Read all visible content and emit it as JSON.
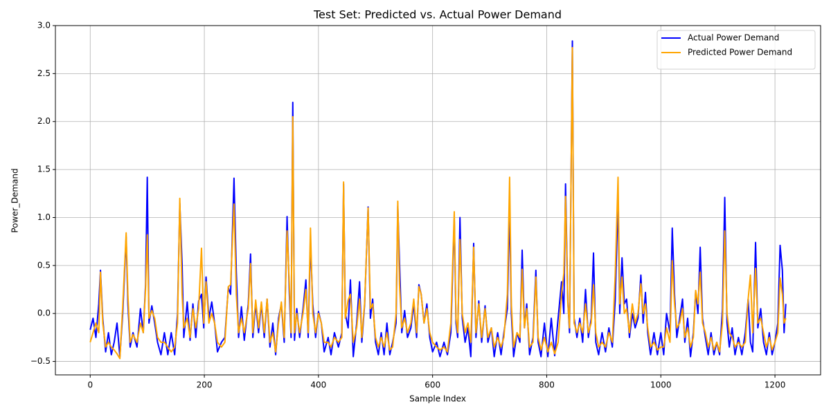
{
  "chart_data": {
    "type": "line",
    "title": "Test Set: Predicted vs. Actual Power Demand",
    "x_label": "Sample Index",
    "y_label": "Power_Demand",
    "xlim": [
      -61,
      1280
    ],
    "ylim": [
      -0.64,
      3.0
    ],
    "xticks": [
      0,
      200,
      400,
      600,
      800,
      1000,
      1200
    ],
    "yticks": [
      {
        "value": -0.5,
        "label": "−0.5"
      },
      {
        "value": 0,
        "label": "0.0"
      },
      0.5,
      {
        "value": 1,
        "label": "1.0"
      },
      1.5,
      {
        "value": 2,
        "label": "2.0"
      },
      2.5,
      {
        "value": 3,
        "label": "3.0"
      }
    ],
    "grid": true,
    "legend": "upper right",
    "x": [
      0,
      5,
      10,
      15,
      18,
      22,
      27,
      32,
      37,
      42,
      47,
      52,
      57,
      63,
      66,
      70,
      75,
      82,
      88,
      93,
      97,
      100,
      103,
      108,
      113,
      118,
      124,
      130,
      136,
      142,
      148,
      153,
      157,
      161,
      164,
      170,
      175,
      180,
      185,
      190,
      195,
      199,
      203,
      208,
      213,
      218,
      223,
      230,
      236,
      242,
      246,
      252,
      256,
      260,
      265,
      270,
      277,
      281,
      285,
      290,
      295,
      300,
      305,
      310,
      315,
      320,
      325,
      330,
      335,
      340,
      345,
      349,
      352,
      355,
      358,
      362,
      367,
      373,
      378,
      382,
      386,
      390,
      395,
      400,
      405,
      410,
      417,
      422,
      428,
      435,
      441,
      444,
      447,
      452,
      456,
      461,
      467,
      472,
      476,
      481,
      487,
      491,
      495,
      500,
      505,
      510,
      515,
      520,
      525,
      530,
      536,
      539,
      542,
      546,
      551,
      556,
      562,
      567,
      572,
      576,
      580,
      585,
      590,
      595,
      600,
      607,
      613,
      620,
      626,
      632,
      638,
      641,
      644,
      648,
      652,
      657,
      662,
      667,
      672,
      676,
      681,
      686,
      692,
      697,
      703,
      708,
      714,
      720,
      725,
      731,
      735,
      738,
      742,
      748,
      753,
      757,
      761,
      765,
      770,
      776,
      781,
      785,
      790,
      796,
      802,
      808,
      814,
      820,
      826,
      830,
      833,
      837,
      840,
      845,
      848,
      853,
      858,
      863,
      868,
      873,
      878,
      882,
      886,
      891,
      897,
      903,
      909,
      915,
      920,
      925,
      928,
      932,
      936,
      940,
      945,
      950,
      955,
      960,
      965,
      969,
      973,
      977,
      982,
      988,
      994,
      1000,
      1005,
      1010,
      1016,
      1020,
      1024,
      1028,
      1033,
      1038,
      1042,
      1047,
      1052,
      1057,
      1061,
      1065,
      1069,
      1073,
      1078,
      1083,
      1088,
      1093,
      1098,
      1103,
      1108,
      1112,
      1116,
      1120,
      1125,
      1130,
      1136,
      1142,
      1148,
      1153,
      1157,
      1161,
      1166,
      1170,
      1175,
      1180,
      1185,
      1190,
      1195,
      1200,
      1205,
      1209,
      1213,
      1216,
      1219
    ],
    "series": [
      {
        "name": "Actual Power Demand",
        "color": "#0000ff",
        "values": [
          -0.17,
          -0.05,
          -0.25,
          0.1,
          0.45,
          -0.05,
          -0.4,
          -0.2,
          -0.43,
          -0.3,
          -0.1,
          -0.45,
          0.0,
          0.8,
          0.1,
          -0.35,
          -0.2,
          -0.35,
          0.05,
          -0.2,
          0.3,
          1.42,
          -0.1,
          0.08,
          -0.1,
          -0.3,
          -0.43,
          -0.2,
          -0.43,
          -0.2,
          -0.43,
          0.0,
          1.15,
          0.52,
          -0.25,
          0.12,
          -0.28,
          0.1,
          -0.25,
          0.13,
          0.2,
          -0.15,
          0.38,
          -0.05,
          0.12,
          -0.1,
          -0.4,
          -0.3,
          -0.25,
          0.27,
          0.2,
          1.41,
          0.44,
          -0.25,
          0.07,
          -0.28,
          0.1,
          0.62,
          -0.25,
          0.1,
          -0.2,
          0.1,
          -0.25,
          0.15,
          -0.35,
          -0.1,
          -0.43,
          -0.05,
          0.1,
          -0.3,
          1.01,
          0.2,
          -0.25,
          2.2,
          -0.28,
          0.05,
          -0.25,
          0.05,
          0.35,
          -0.25,
          0.75,
          0.1,
          -0.25,
          0.02,
          -0.1,
          -0.4,
          -0.25,
          -0.43,
          -0.2,
          -0.35,
          -0.2,
          1.35,
          0.0,
          -0.15,
          0.35,
          -0.45,
          -0.1,
          0.33,
          -0.3,
          0.1,
          1.11,
          -0.05,
          0.15,
          -0.3,
          -0.43,
          -0.2,
          -0.43,
          -0.1,
          -0.43,
          -0.3,
          -0.1,
          1.12,
          0.54,
          -0.2,
          0.03,
          -0.25,
          -0.15,
          0.1,
          -0.25,
          0.3,
          0.2,
          -0.1,
          0.1,
          -0.25,
          -0.4,
          -0.3,
          -0.45,
          -0.3,
          -0.43,
          -0.2,
          0.99,
          -0.1,
          -0.25,
          1.0,
          -0.05,
          -0.3,
          -0.15,
          -0.45,
          0.73,
          -0.25,
          0.13,
          -0.3,
          0.08,
          -0.3,
          -0.15,
          -0.45,
          -0.2,
          -0.43,
          -0.2,
          0.05,
          1.1,
          0.0,
          -0.45,
          -0.2,
          -0.3,
          0.66,
          -0.15,
          0.1,
          -0.43,
          -0.25,
          0.45,
          -0.3,
          -0.45,
          -0.1,
          -0.45,
          -0.05,
          -0.44,
          -0.05,
          0.33,
          0.0,
          1.35,
          0.13,
          -0.2,
          2.84,
          -0.05,
          -0.25,
          -0.05,
          -0.3,
          0.25,
          -0.25,
          -0.05,
          0.63,
          -0.3,
          -0.43,
          -0.2,
          -0.4,
          -0.15,
          -0.35,
          0.13,
          1.19,
          0.0,
          0.58,
          0.1,
          0.15,
          -0.25,
          0.0,
          -0.15,
          -0.05,
          0.4,
          -0.1,
          0.22,
          -0.2,
          -0.43,
          -0.2,
          -0.43,
          -0.2,
          -0.43,
          0.0,
          -0.2,
          0.89,
          0.2,
          -0.25,
          -0.05,
          0.15,
          -0.3,
          -0.05,
          -0.45,
          -0.2,
          0.23,
          0.0,
          0.69,
          -0.05,
          -0.25,
          -0.43,
          -0.2,
          -0.43,
          -0.3,
          -0.43,
          0.05,
          1.21,
          -0.1,
          -0.35,
          -0.15,
          -0.43,
          -0.25,
          -0.43,
          -0.2,
          0.15,
          -0.3,
          -0.4,
          0.74,
          -0.15,
          0.05,
          -0.3,
          -0.43,
          -0.2,
          -0.43,
          -0.3,
          -0.1,
          0.71,
          0.45,
          -0.2,
          0.1
        ]
      },
      {
        "name": "Predicted Power Demand",
        "color": "#ffa500",
        "values": [
          -0.3,
          -0.2,
          -0.1,
          -0.2,
          0.43,
          -0.1,
          -0.35,
          -0.3,
          -0.35,
          -0.38,
          -0.42,
          -0.47,
          0.08,
          0.84,
          0.2,
          -0.3,
          -0.22,
          -0.3,
          -0.1,
          -0.2,
          0.25,
          0.82,
          -0.05,
          0.03,
          -0.05,
          -0.25,
          -0.3,
          -0.3,
          -0.35,
          -0.4,
          -0.35,
          -0.1,
          1.2,
          0.2,
          -0.15,
          -0.05,
          -0.25,
          0.05,
          -0.15,
          0.05,
          0.68,
          -0.1,
          0.33,
          -0.1,
          0.0,
          -0.1,
          -0.3,
          -0.35,
          -0.3,
          0.28,
          0.3,
          1.14,
          0.2,
          -0.2,
          -0.05,
          -0.2,
          0.05,
          0.52,
          -0.2,
          0.14,
          -0.15,
          0.12,
          -0.2,
          0.15,
          -0.3,
          -0.2,
          -0.4,
          -0.1,
          0.12,
          -0.25,
          0.86,
          0.3,
          -0.2,
          2.05,
          -0.2,
          0.0,
          -0.2,
          0.0,
          0.25,
          -0.2,
          0.89,
          0.0,
          -0.2,
          0.0,
          -0.1,
          -0.3,
          -0.3,
          -0.35,
          -0.25,
          -0.3,
          -0.25,
          1.37,
          -0.05,
          0.14,
          0.2,
          -0.3,
          -0.15,
          0.15,
          -0.25,
          0.12,
          1.1,
          0.05,
          0.1,
          -0.25,
          -0.35,
          -0.25,
          -0.35,
          -0.2,
          -0.38,
          -0.35,
          0.0,
          1.17,
          0.3,
          -0.15,
          -0.05,
          -0.2,
          -0.1,
          0.15,
          -0.2,
          0.28,
          0.2,
          -0.1,
          0.05,
          -0.2,
          -0.3,
          -0.35,
          -0.38,
          -0.35,
          -0.4,
          -0.1,
          1.06,
          -0.05,
          -0.2,
          0.77,
          0.0,
          -0.2,
          -0.1,
          -0.3,
          0.69,
          -0.2,
          0.1,
          -0.25,
          0.05,
          -0.25,
          -0.15,
          -0.35,
          -0.25,
          -0.35,
          -0.25,
          0.2,
          1.42,
          0.1,
          -0.35,
          -0.2,
          -0.25,
          0.46,
          -0.15,
          0.05,
          -0.35,
          -0.3,
          0.38,
          -0.25,
          -0.38,
          -0.25,
          -0.4,
          -0.3,
          -0.42,
          -0.3,
          0.2,
          0.42,
          1.22,
          0.1,
          -0.15,
          2.77,
          -0.1,
          -0.2,
          -0.1,
          -0.2,
          0.1,
          -0.2,
          -0.1,
          0.3,
          -0.2,
          -0.35,
          -0.3,
          -0.35,
          -0.2,
          -0.3,
          0.4,
          1.42,
          0.1,
          0.38,
          0.0,
          0.05,
          -0.2,
          0.1,
          -0.1,
          0.0,
          0.31,
          0.0,
          0.1,
          -0.15,
          -0.35,
          -0.3,
          -0.38,
          -0.35,
          -0.35,
          -0.15,
          -0.3,
          0.55,
          0.1,
          -0.15,
          -0.1,
          0.05,
          -0.25,
          -0.15,
          -0.35,
          -0.25,
          0.24,
          0.1,
          0.43,
          -0.1,
          -0.2,
          -0.35,
          -0.25,
          -0.38,
          -0.3,
          -0.4,
          -0.1,
          0.86,
          0.0,
          -0.2,
          -0.25,
          -0.35,
          -0.3,
          -0.35,
          -0.3,
          0.15,
          0.4,
          -0.2,
          0.47,
          -0.1,
          -0.05,
          -0.2,
          -0.35,
          -0.25,
          -0.38,
          -0.3,
          -0.2,
          0.37,
          0.2,
          -0.1,
          -0.05
        ]
      }
    ]
  }
}
